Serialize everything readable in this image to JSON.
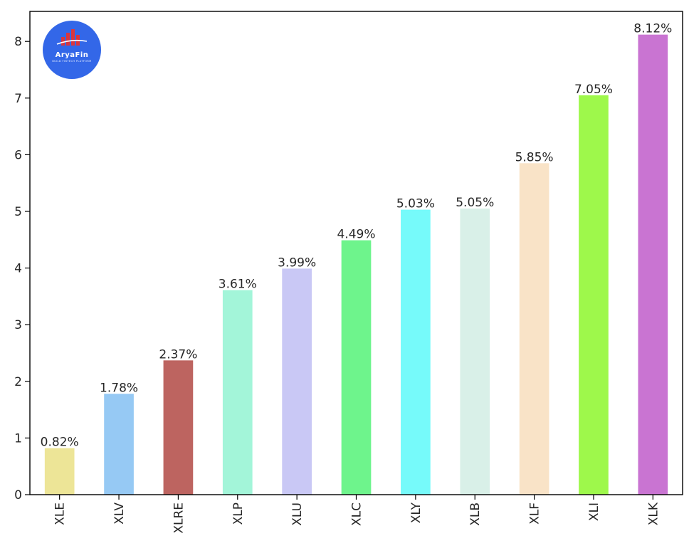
{
  "logo": {
    "name": "AryaFin",
    "tagline": "BUILD FINTECH PLATFORM",
    "bg_color": "#3367e8",
    "bar_color": "#d9363e"
  },
  "chart_data": {
    "type": "bar",
    "categories": [
      "XLE",
      "XLV",
      "XLRE",
      "XLP",
      "XLU",
      "XLC",
      "XLY",
      "XLB",
      "XLF",
      "XLI",
      "XLK"
    ],
    "values": [
      0.82,
      1.78,
      2.37,
      3.61,
      3.99,
      4.49,
      5.03,
      5.05,
      5.85,
      7.05,
      8.12
    ],
    "labels": [
      "0.82%",
      "1.78%",
      "2.37%",
      "3.61%",
      "3.99%",
      "4.49%",
      "5.03%",
      "5.05%",
      "5.85%",
      "7.05%",
      "8.12%"
    ],
    "colors": [
      "#ede597",
      "#96c9f4",
      "#bd6460",
      "#a3f5d9",
      "#c9c8f5",
      "#6ef48c",
      "#76fafa",
      "#d9f0e8",
      "#f9e3c7",
      "#9ef84b",
      "#c974d2"
    ],
    "yticks": [
      0,
      1,
      2,
      3,
      4,
      5,
      6,
      7,
      8
    ],
    "ylim": [
      0,
      8.53
    ],
    "grid": false,
    "xlabel": "",
    "ylabel": "",
    "title": ""
  }
}
